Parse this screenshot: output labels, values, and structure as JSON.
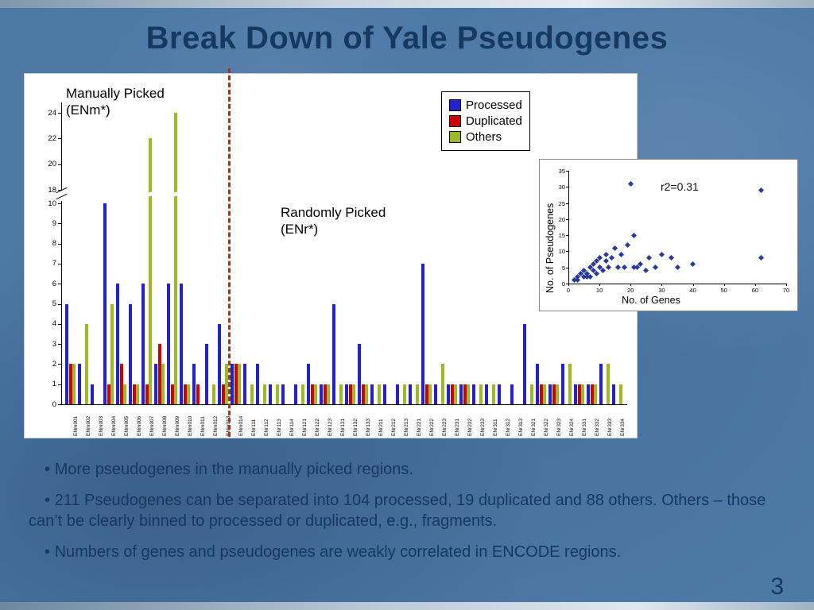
{
  "slide": {
    "title": "Break Down of Yale Pseudogenes",
    "page_number": "3",
    "bullets": [
      {
        "marker": "•",
        "text": "More pseudogenes in the manually picked regions."
      },
      {
        "marker": "•",
        "text": "211 Pseudogenes can be separated into 104 processed, 19 duplicated and 88 others. Others – those can’t be clearly binned to processed or duplicated, e.g., fragments."
      },
      {
        "marker": "•",
        "text": "Numbers of genes and pseudogenes are weakly correlated in ENCODE regions."
      }
    ],
    "colors": {
      "background": "#4d79a7",
      "title_text": "#17395f",
      "body_text": "#17375e",
      "divider_line": "#9a3a1e"
    }
  },
  "chart_data": [
    {
      "type": "bar",
      "title": "",
      "categories": [
        "ENm001",
        "ENm002",
        "ENm003",
        "ENm004",
        "ENm005",
        "ENm006",
        "ENm007",
        "ENm008",
        "ENm009",
        "ENm010",
        "ENm011",
        "ENm012",
        "ENm013",
        "ENm014",
        "ENr111",
        "ENr112",
        "ENr113",
        "ENr114",
        "ENr121",
        "ENr122",
        "ENr123",
        "ENr131",
        "ENr132",
        "ENr133",
        "ENr211",
        "ENr212",
        "ENr213",
        "ENr221",
        "ENr222",
        "ENr223",
        "ENr231",
        "ENr232",
        "ENr233",
        "ENr311",
        "ENr312",
        "ENr313",
        "ENr321",
        "ENr322",
        "ENr323",
        "ENr324",
        "ENr331",
        "ENr332",
        "ENr333",
        "ENr334"
      ],
      "series": [
        {
          "name": "Processed",
          "color": "#2222CC",
          "values": [
            5,
            2,
            1,
            10,
            6,
            5,
            6,
            2,
            6,
            6,
            2,
            3,
            4,
            2,
            2,
            2,
            1,
            1,
            1,
            2,
            1,
            5,
            1,
            3,
            1,
            1,
            1,
            1,
            7,
            1,
            1,
            1,
            1,
            1,
            1,
            1,
            4,
            2,
            1,
            2,
            1,
            1,
            2,
            1
          ]
        },
        {
          "name": "Duplicated",
          "color": "#CC0000",
          "values": [
            2,
            0,
            0,
            1,
            2,
            1,
            1,
            3,
            1,
            1,
            1,
            0,
            1,
            2,
            0,
            0,
            0,
            0,
            0,
            1,
            1,
            0,
            1,
            1,
            0,
            0,
            0,
            0,
            1,
            0,
            1,
            1,
            0,
            0,
            0,
            0,
            0,
            1,
            1,
            0,
            1,
            1,
            0,
            0
          ]
        },
        {
          "name": "Others",
          "color": "#9CBB22",
          "values": [
            2,
            4,
            0,
            5,
            1,
            1,
            22,
            2,
            24,
            1,
            0,
            1,
            2,
            2,
            1,
            1,
            1,
            0,
            1,
            1,
            1,
            1,
            1,
            1,
            1,
            0,
            1,
            1,
            1,
            2,
            1,
            1,
            1,
            1,
            0,
            0,
            1,
            1,
            1,
            2,
            1,
            1,
            2,
            1
          ]
        }
      ],
      "y_ticks_lower": [
        0,
        1,
        2,
        3,
        4,
        5,
        6,
        7,
        8,
        9,
        10
      ],
      "y_ticks_upper": [
        18,
        20,
        22,
        24
      ],
      "axis_break": true,
      "legend_position": "top-right",
      "annotations": {
        "manual_label": "Manually Picked (ENm*)",
        "random_label": "Randomly Picked (ENr*)"
      },
      "divider_after_category": "ENm014"
    },
    {
      "type": "scatter",
      "xlabel": "No. of Genes",
      "ylabel": "No. of Pseudogenes",
      "annotation": "r2=0.31",
      "xlim": [
        0,
        70
      ],
      "ylim": [
        0,
        35
      ],
      "x_ticks": [
        0,
        10,
        20,
        30,
        40,
        50,
        60,
        70
      ],
      "y_ticks": [
        0,
        5,
        10,
        15,
        20,
        25,
        30,
        35
      ],
      "marker": "diamond",
      "marker_color": "#2B3A9B",
      "points": [
        [
          2,
          1
        ],
        [
          3,
          2
        ],
        [
          3,
          1
        ],
        [
          4,
          3
        ],
        [
          5,
          2
        ],
        [
          5,
          4
        ],
        [
          6,
          2
        ],
        [
          6,
          3
        ],
        [
          7,
          5
        ],
        [
          7,
          2
        ],
        [
          8,
          4
        ],
        [
          8,
          6
        ],
        [
          9,
          3
        ],
        [
          9,
          7
        ],
        [
          10,
          5
        ],
        [
          10,
          8
        ],
        [
          11,
          4
        ],
        [
          12,
          7
        ],
        [
          12,
          9
        ],
        [
          13,
          5
        ],
        [
          14,
          8
        ],
        [
          15,
          11
        ],
        [
          16,
          5
        ],
        [
          17,
          9
        ],
        [
          18,
          5
        ],
        [
          19,
          12
        ],
        [
          20,
          31
        ],
        [
          21,
          15
        ],
        [
          21,
          5
        ],
        [
          22,
          5
        ],
        [
          23,
          6
        ],
        [
          25,
          4
        ],
        [
          26,
          8
        ],
        [
          28,
          5
        ],
        [
          30,
          9
        ],
        [
          33,
          8
        ],
        [
          35,
          5
        ],
        [
          40,
          6
        ],
        [
          62,
          29
        ],
        [
          62,
          8
        ]
      ]
    }
  ]
}
